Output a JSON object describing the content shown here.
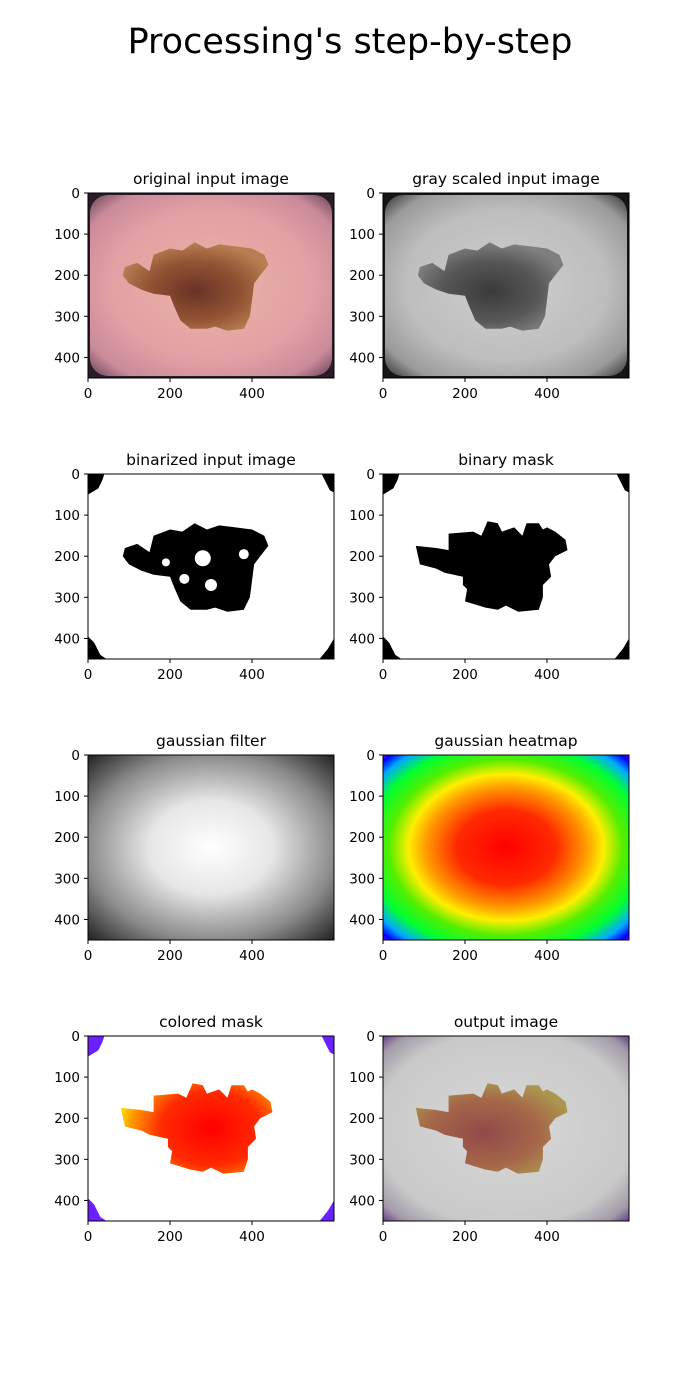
{
  "figure": {
    "suptitle": "Processing's step-by-step"
  },
  "chart_data": [
    {
      "type": "image",
      "panel": "original-input-image",
      "title": "original input image",
      "xticks": [
        0,
        200,
        400
      ],
      "yticks": [
        0,
        100,
        200,
        300,
        400
      ],
      "xlim": [
        0,
        600
      ],
      "ylim": [
        450,
        0
      ],
      "rendering": "dermoscopy-color"
    },
    {
      "type": "image",
      "panel": "gray-scaled-input-image",
      "title": "gray scaled input image",
      "xticks": [
        0,
        200,
        400
      ],
      "yticks": [
        0,
        100,
        200,
        300,
        400
      ],
      "xlim": [
        0,
        600
      ],
      "ylim": [
        450,
        0
      ],
      "rendering": "dermoscopy-gray"
    },
    {
      "type": "image",
      "panel": "binarized-input-image",
      "title": "binarized input image",
      "xticks": [
        0,
        200,
        400
      ],
      "yticks": [
        0,
        100,
        200,
        300,
        400
      ],
      "xlim": [
        0,
        600
      ],
      "ylim": [
        450,
        0
      ],
      "rendering": "binary-noisy"
    },
    {
      "type": "image",
      "panel": "binary-mask",
      "title": "binary mask",
      "xticks": [
        0,
        200,
        400
      ],
      "yticks": [
        0,
        100,
        200,
        300,
        400
      ],
      "xlim": [
        0,
        600
      ],
      "ylim": [
        450,
        0
      ],
      "rendering": "binary-clean"
    },
    {
      "type": "image",
      "panel": "gaussian-filter",
      "title": "gaussian filter",
      "xticks": [
        0,
        200,
        400
      ],
      "yticks": [
        0,
        100,
        200,
        300,
        400
      ],
      "xlim": [
        0,
        600
      ],
      "ylim": [
        450,
        0
      ],
      "rendering": "gaussian-gray"
    },
    {
      "type": "image",
      "panel": "gaussian-heatmap",
      "title": "gaussian heatmap",
      "xticks": [
        0,
        200,
        400
      ],
      "yticks": [
        0,
        100,
        200,
        300,
        400
      ],
      "xlim": [
        0,
        600
      ],
      "ylim": [
        450,
        0
      ],
      "rendering": "gaussian-heatmap"
    },
    {
      "type": "image",
      "panel": "colored-mask",
      "title": "colored mask",
      "xticks": [
        0,
        200,
        400
      ],
      "yticks": [
        0,
        100,
        200,
        300,
        400
      ],
      "xlim": [
        0,
        600
      ],
      "ylim": [
        450,
        0
      ],
      "rendering": "colored-mask"
    },
    {
      "type": "image",
      "panel": "output-image",
      "title": "output image",
      "xticks": [
        0,
        200,
        400
      ],
      "yticks": [
        0,
        100,
        200,
        300,
        400
      ],
      "xlim": [
        0,
        600
      ],
      "ylim": [
        450,
        0
      ],
      "rendering": "overlay-output"
    }
  ]
}
